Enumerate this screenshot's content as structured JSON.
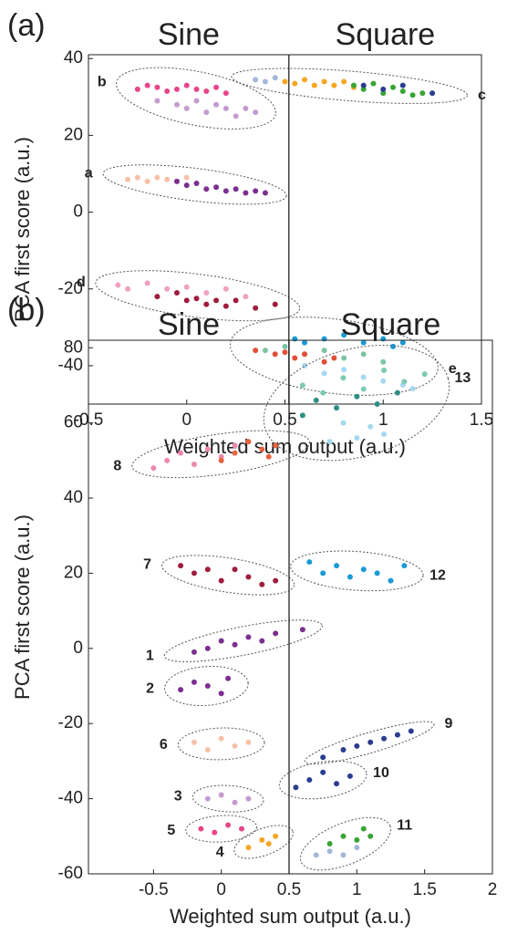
{
  "chart_data": [
    {
      "type": "scatter",
      "panel": "(a)",
      "left_title": "Sine",
      "right_title": "Square",
      "xlabel": "Weighted sum output (a.u.)",
      "ylabel": "PCA first score (a.u.)",
      "xlim": [
        -0.5,
        1.5
      ],
      "ylim": [
        -50,
        41
      ],
      "xticks": [
        -0.5,
        0,
        0.5,
        1,
        1.5
      ],
      "yticks": [
        -40,
        -20,
        0,
        20,
        40
      ],
      "divider": 0.52,
      "clusters": [
        {
          "label": "b",
          "groups": [
            {
              "color": "#e8458a",
              "x": [
                -0.25,
                -0.2,
                -0.15,
                -0.1,
                -0.05,
                0,
                0.05,
                0.1,
                0.15,
                0.2
              ],
              "y": [
                32,
                33,
                32.5,
                31.5,
                32,
                33,
                32,
                31.5,
                32.5,
                31
              ]
            },
            {
              "color": "#c49bd0",
              "x": [
                -0.15,
                -0.05,
                0,
                0.05,
                0.1,
                0.15,
                0.2,
                0.25,
                0.3,
                0.35
              ],
              "y": [
                29,
                28,
                27,
                29,
                26,
                28,
                27,
                25,
                27,
                26
              ]
            }
          ]
        },
        {
          "label": "c",
          "groups": [
            {
              "color": "#a3b8d8",
              "x": [
                0.35,
                0.4,
                0.45
              ],
              "y": [
                34.5,
                34,
                35
              ]
            },
            {
              "color": "#f5a623",
              "x": [
                0.5,
                0.55,
                0.6,
                0.65,
                0.7,
                0.75,
                0.8,
                0.85
              ],
              "y": [
                34,
                33.5,
                34.5,
                33,
                34,
                33,
                34,
                32.5
              ]
            },
            {
              "color": "#3aa335",
              "x": [
                0.85,
                0.9,
                0.95,
                1.0,
                1.05,
                1.1,
                1.15,
                1.2
              ],
              "y": [
                33,
                32,
                33.5,
                31,
                32.5,
                31.5,
                30.5,
                31
              ]
            },
            {
              "color": "#2a3d8f",
              "x": [
                0.9,
                1.0,
                1.1,
                1.25
              ],
              "y": [
                33,
                32,
                33,
                31
              ]
            }
          ]
        },
        {
          "label": "a",
          "groups": [
            {
              "color": "#f7c1a8",
              "x": [
                -0.3,
                -0.25,
                -0.2,
                -0.15,
                -0.1,
                -0.05,
                0
              ],
              "y": [
                8.5,
                9,
                8,
                9,
                8.5,
                8,
                9
              ]
            },
            {
              "color": "#7b2f8e",
              "x": [
                -0.05,
                0,
                0.05,
                0.1,
                0.15,
                0.2,
                0.25,
                0.3,
                0.35,
                0.4
              ],
              "y": [
                8,
                7,
                7.5,
                6,
                6.5,
                5.5,
                6,
                5,
                5.5,
                5
              ]
            }
          ]
        },
        {
          "label": "d",
          "groups": [
            {
              "color": "#f0a0c0",
              "x": [
                -0.35,
                -0.3,
                -0.2,
                -0.1,
                0,
                0.1,
                0.2,
                0.3
              ],
              "y": [
                -19,
                -20,
                -18.5,
                -20,
                -19.5,
                -21,
                -20,
                -22
              ]
            },
            {
              "color": "#a01c3c",
              "x": [
                -0.15,
                -0.05,
                0,
                0.05,
                0.1,
                0.15,
                0.2,
                0.25,
                0.35,
                0.45
              ],
              "y": [
                -22,
                -21,
                -23,
                -22.5,
                -24,
                -23,
                -24.5,
                -23,
                -25,
                -24
              ]
            }
          ]
        },
        {
          "label": "e",
          "groups": [
            {
              "color": "#1a9ad6",
              "x": [
                0.55,
                0.6,
                0.7,
                0.8,
                0.9,
                1.0,
                1.05,
                1.1
              ],
              "y": [
                -33,
                -34,
                -33,
                -32,
                -34,
                -33,
                -35,
                -34
              ]
            },
            {
              "color": "#7cc4a4",
              "x": [
                0.4,
                0.5,
                0.6,
                0.7,
                0.8,
                0.9,
                1.0
              ],
              "y": [
                -36,
                -35,
                -37,
                -36,
                -38,
                -37,
                -39
              ]
            },
            {
              "color": "#e05038",
              "x": [
                0.35,
                0.45,
                0.5,
                0.55,
                0.6,
                0.7,
                0.75
              ],
              "y": [
                -36,
                -37,
                -36.5,
                -38,
                -37,
                -39,
                -38
              ]
            },
            {
              "color": "#a6d8f0",
              "x": [
                0.6,
                0.7,
                0.8,
                0.9,
                1.0,
                1.1,
                1.15
              ],
              "y": [
                -40,
                -42,
                -41,
                -43,
                -44,
                -45,
                -46
              ]
            }
          ]
        }
      ]
    },
    {
      "type": "scatter",
      "panel": "(b)",
      "left_title": "Sine",
      "right_title": "Square",
      "xlabel": "Weighted sum output (a.u.)",
      "ylabel": "PCA first score (a.u.)",
      "xlim": [
        -0.98,
        2
      ],
      "ylim": [
        -60,
        82
      ],
      "xticks": [
        -0.5,
        0,
        0.5,
        1,
        1.5,
        2
      ],
      "yticks": [
        -60,
        -40,
        -20,
        0,
        20,
        40,
        60,
        80
      ],
      "divider": 0.5,
      "clusters": [
        {
          "label": "13",
          "groups": [
            {
              "color": "#7ec9b5",
              "x": [
                0.6,
                0.75,
                0.9,
                1.05,
                1.2,
                1.35,
                1.5
              ],
              "y": [
                70,
                68,
                72,
                69,
                74,
                71,
                73
              ]
            },
            {
              "color": "#2e8f84",
              "x": [
                0.6,
                0.7,
                0.85,
                1.0,
                1.15,
                1.3
              ],
              "y": [
                62,
                66,
                64,
                67,
                65,
                68
              ]
            },
            {
              "color": "#a6d8f0",
              "x": [
                0.8,
                0.9,
                1.0,
                1.1,
                1.2
              ],
              "y": [
                55,
                60,
                56,
                59,
                57
              ]
            }
          ]
        },
        {
          "label": "8",
          "groups": [
            {
              "color": "#ee88b0",
              "x": [
                -0.5,
                -0.4,
                -0.3,
                -0.2,
                -0.1,
                0,
                0.1
              ],
              "y": [
                48,
                50,
                52,
                49,
                53,
                51,
                54
              ]
            },
            {
              "color": "#e8633f",
              "x": [
                0,
                0.1,
                0.2,
                0.3,
                0.35,
                0.4
              ],
              "y": [
                50,
                52,
                55,
                53,
                51,
                54
              ]
            }
          ]
        },
        {
          "label": "12",
          "groups": [
            {
              "color": "#1a9ad6",
              "x": [
                0.65,
                0.75,
                0.85,
                0.95,
                1.05,
                1.15,
                1.25,
                1.35
              ],
              "y": [
                23,
                20,
                22,
                19,
                21,
                20,
                18,
                22
              ]
            }
          ]
        },
        {
          "label": "7",
          "groups": [
            {
              "color": "#a01c3c",
              "x": [
                -0.3,
                -0.2,
                -0.1,
                0,
                0.1,
                0.2,
                0.3,
                0.4
              ],
              "y": [
                22,
                20,
                21,
                18,
                21,
                19,
                17,
                18
              ]
            }
          ]
        },
        {
          "label": "1",
          "groups": [
            {
              "color": "#7b2f8e",
              "x": [
                -0.2,
                -0.1,
                0,
                0.1,
                0.2,
                0.3,
                0.4,
                0.6
              ],
              "y": [
                -1,
                0,
                2,
                1,
                3,
                2,
                4,
                5
              ]
            }
          ]
        },
        {
          "label": "2",
          "groups": [
            {
              "color": "#7b2f8e",
              "x": [
                -0.3,
                -0.2,
                -0.1,
                0,
                0.05
              ],
              "y": [
                -11,
                -9,
                -10,
                -12,
                -8
              ]
            }
          ]
        },
        {
          "label": "6",
          "groups": [
            {
              "color": "#f7c1a8",
              "x": [
                -0.2,
                -0.1,
                0,
                0.1,
                0.2
              ],
              "y": [
                -25,
                -27,
                -24,
                -26,
                -25
              ]
            }
          ]
        },
        {
          "label": "9",
          "groups": [
            {
              "color": "#2a3d8f",
              "x": [
                0.75,
                0.9,
                1.0,
                1.1,
                1.2,
                1.3,
                1.4
              ],
              "y": [
                -29,
                -27,
                -26,
                -25,
                -24,
                -23,
                -22
              ]
            }
          ]
        },
        {
          "label": "10",
          "groups": [
            {
              "color": "#2a3d8f",
              "x": [
                0.55,
                0.65,
                0.75,
                0.85,
                0.95
              ],
              "y": [
                -37,
                -35,
                -33,
                -36,
                -34
              ]
            }
          ]
        },
        {
          "label": "3",
          "groups": [
            {
              "color": "#c49bd0",
              "x": [
                -0.1,
                0,
                0.1,
                0.2
              ],
              "y": [
                -40,
                -39,
                -41,
                -40
              ]
            }
          ]
        },
        {
          "label": "11",
          "groups": [
            {
              "color": "#a3b8d8",
              "x": [
                0.7,
                0.8,
                0.9,
                1.0
              ],
              "y": [
                -55,
                -54,
                -55,
                -53
              ]
            },
            {
              "color": "#3aa335",
              "x": [
                0.8,
                0.9,
                1.0,
                1.05,
                1.1
              ],
              "y": [
                -52,
                -50,
                -51,
                -48,
                -50
              ]
            }
          ]
        },
        {
          "label": "5",
          "groups": [
            {
              "color": "#e8458a",
              "x": [
                -0.15,
                -0.05,
                0.05,
                0.15
              ],
              "y": [
                -48,
                -49,
                -47,
                -48
              ]
            }
          ]
        },
        {
          "label": "4",
          "groups": [
            {
              "color": "#f5a623",
              "x": [
                0.2,
                0.3,
                0.35,
                0.4
              ],
              "y": [
                -53,
                -51,
                -52,
                -50
              ]
            }
          ]
        }
      ]
    }
  ]
}
